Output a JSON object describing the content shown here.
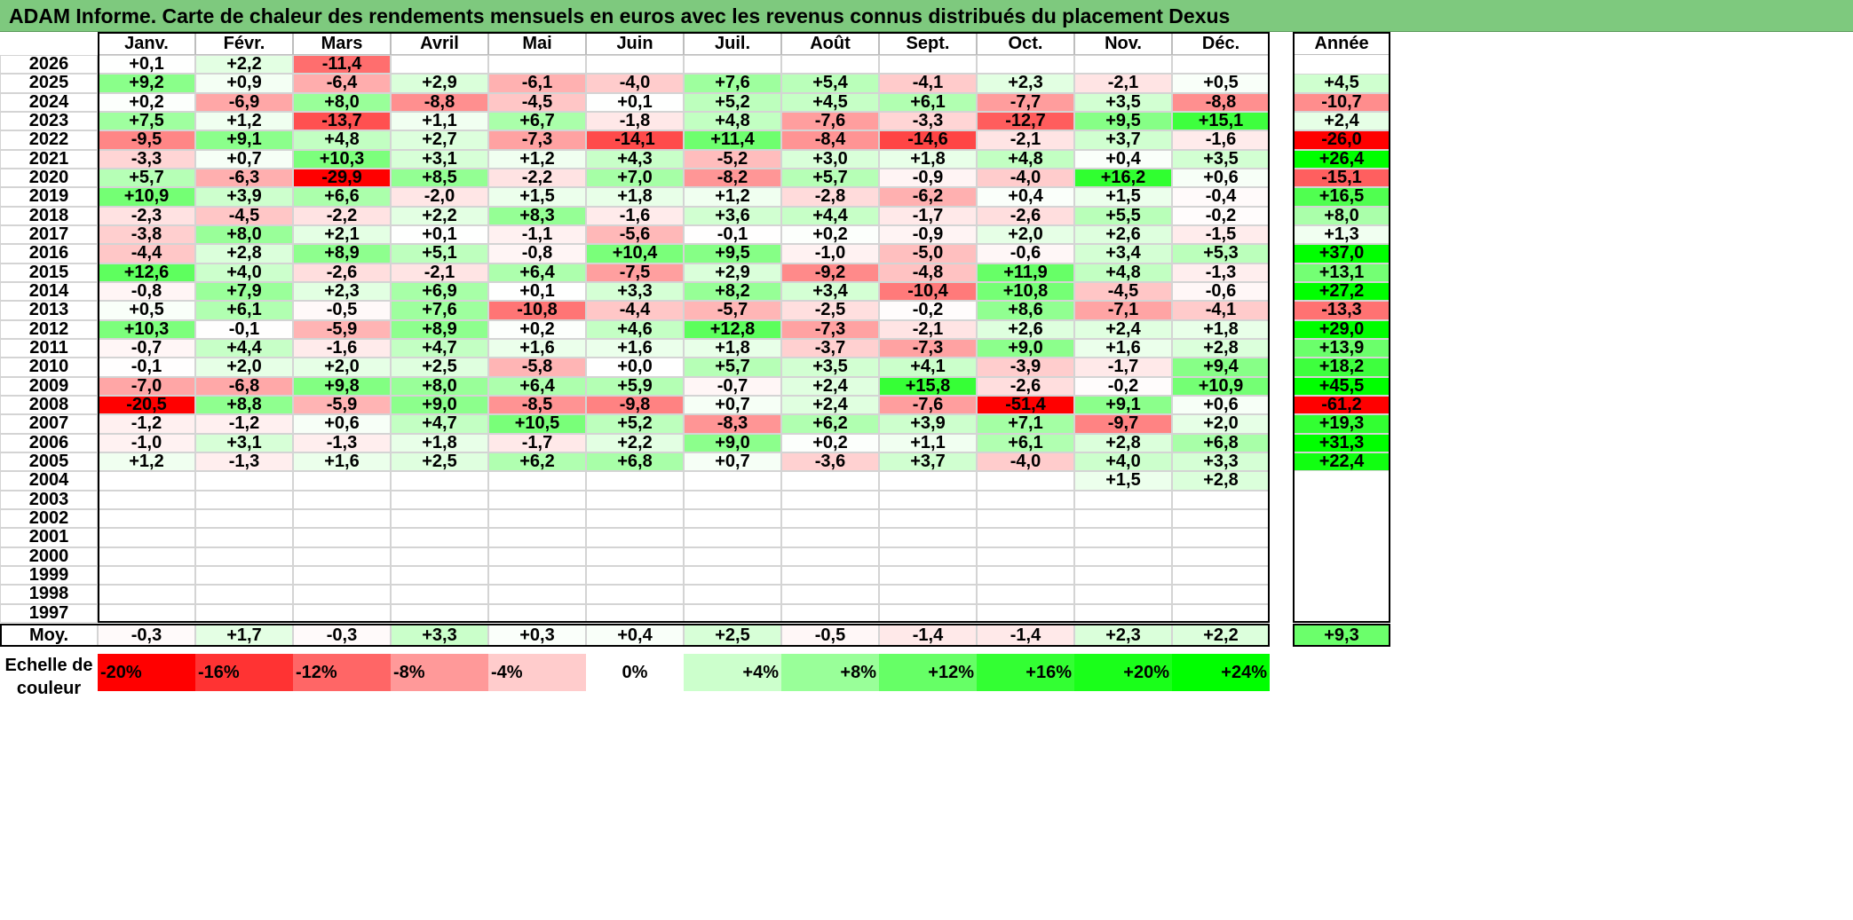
{
  "title": "ADAM Informe. Carte de chaleur des rendements mensuels en euros avec les revenus connus distribués du placement Dexus",
  "chart_data": {
    "type": "heatmap",
    "title": "ADAM Informe. Carte de chaleur des rendements mensuels en euros avec les revenus connus distribués du placement Dexus",
    "columns": [
      "Janv.",
      "Févr.",
      "Mars",
      "Avril",
      "Mai",
      "Juin",
      "Juil.",
      "Août",
      "Sept.",
      "Oct.",
      "Nov.",
      "Déc."
    ],
    "year_column_label": "Année",
    "rows": [
      {
        "year": "2026",
        "values": [
          "+0,1",
          "+2,2",
          "-11,4",
          null,
          null,
          null,
          null,
          null,
          null,
          null,
          null,
          null
        ],
        "annual": null
      },
      {
        "year": "2025",
        "values": [
          "+9,2",
          "+0,9",
          "-6,4",
          "+2,9",
          "-6,1",
          "-4,0",
          "+7,6",
          "+5,4",
          "-4,1",
          "+2,3",
          "-2,1",
          "+0,5"
        ],
        "annual": "+4,5"
      },
      {
        "year": "2024",
        "values": [
          "+0,2",
          "-6,9",
          "+8,0",
          "-8,8",
          "-4,5",
          "+0,1",
          "+5,2",
          "+4,5",
          "+6,1",
          "-7,7",
          "+3,5",
          "-8,8"
        ],
        "annual": "-10,7"
      },
      {
        "year": "2023",
        "values": [
          "+7,5",
          "+1,2",
          "-13,7",
          "+1,1",
          "+6,7",
          "-1,8",
          "+4,8",
          "-7,6",
          "-3,3",
          "-12,7",
          "+9,5",
          "+15,1"
        ],
        "annual": "+2,4"
      },
      {
        "year": "2022",
        "values": [
          "-9,5",
          "+9,1",
          "+4,8",
          "+2,7",
          "-7,3",
          "-14,1",
          "+11,4",
          "-8,4",
          "-14,6",
          "-2,1",
          "+3,7",
          "-1,6"
        ],
        "annual": "-26,0"
      },
      {
        "year": "2021",
        "values": [
          "-3,3",
          "+0,7",
          "+10,3",
          "+3,1",
          "+1,2",
          "+4,3",
          "-5,2",
          "+3,0",
          "+1,8",
          "+4,8",
          "+0,4",
          "+3,5"
        ],
        "annual": "+26,4"
      },
      {
        "year": "2020",
        "values": [
          "+5,7",
          "-6,3",
          "-29,9",
          "+8,5",
          "-2,2",
          "+7,0",
          "-8,2",
          "+5,7",
          "-0,9",
          "-4,0",
          "+16,2",
          "+0,6"
        ],
        "annual": "-15,1"
      },
      {
        "year": "2019",
        "values": [
          "+10,9",
          "+3,9",
          "+6,6",
          "-2,0",
          "+1,5",
          "+1,8",
          "+1,2",
          "-2,8",
          "-6,2",
          "+0,4",
          "+1,5",
          "-0,4"
        ],
        "annual": "+16,5"
      },
      {
        "year": "2018",
        "values": [
          "-2,3",
          "-4,5",
          "-2,2",
          "+2,2",
          "+8,3",
          "-1,6",
          "+3,6",
          "+4,4",
          "-1,7",
          "-2,6",
          "+5,5",
          "-0,2"
        ],
        "annual": "+8,0"
      },
      {
        "year": "2017",
        "values": [
          "-3,8",
          "+8,0",
          "+2,1",
          "+0,1",
          "-1,1",
          "-5,6",
          "-0,1",
          "+0,2",
          "-0,9",
          "+2,0",
          "+2,6",
          "-1,5"
        ],
        "annual": "+1,3"
      },
      {
        "year": "2016",
        "values": [
          "-4,4",
          "+2,8",
          "+8,9",
          "+5,1",
          "-0,8",
          "+10,4",
          "+9,5",
          "-1,0",
          "-5,0",
          "-0,6",
          "+3,4",
          "+5,3"
        ],
        "annual": "+37,0"
      },
      {
        "year": "2015",
        "values": [
          "+12,6",
          "+4,0",
          "-2,6",
          "-2,1",
          "+6,4",
          "-7,5",
          "+2,9",
          "-9,2",
          "-4,8",
          "+11,9",
          "+4,8",
          "-1,3"
        ],
        "annual": "+13,1"
      },
      {
        "year": "2014",
        "values": [
          "-0,8",
          "+7,9",
          "+2,3",
          "+6,9",
          "+0,1",
          "+3,3",
          "+8,2",
          "+3,4",
          "-10,4",
          "+10,8",
          "-4,5",
          "-0,6"
        ],
        "annual": "+27,2"
      },
      {
        "year": "2013",
        "values": [
          "+0,5",
          "+6,1",
          "-0,5",
          "+7,6",
          "-10,8",
          "-4,4",
          "-5,7",
          "-2,5",
          "-0,2",
          "+8,6",
          "-7,1",
          "-4,1"
        ],
        "annual": "-13,3"
      },
      {
        "year": "2012",
        "values": [
          "+10,3",
          "-0,1",
          "-5,9",
          "+8,9",
          "+0,2",
          "+4,6",
          "+12,8",
          "-7,3",
          "-2,1",
          "+2,6",
          "+2,4",
          "+1,8"
        ],
        "annual": "+29,0"
      },
      {
        "year": "2011",
        "values": [
          "-0,7",
          "+4,4",
          "-1,6",
          "+4,7",
          "+1,6",
          "+1,6",
          "+1,8",
          "-3,7",
          "-7,3",
          "+9,0",
          "+1,6",
          "+2,8"
        ],
        "annual": "+13,9"
      },
      {
        "year": "2010",
        "values": [
          "-0,1",
          "+2,0",
          "+2,0",
          "+2,5",
          "-5,8",
          "+0,0",
          "+5,7",
          "+3,5",
          "+4,1",
          "-3,9",
          "-1,7",
          "+9,4"
        ],
        "annual": "+18,2"
      },
      {
        "year": "2009",
        "values": [
          "-7,0",
          "-6,8",
          "+9,8",
          "+8,0",
          "+6,4",
          "+5,9",
          "-0,7",
          "+2,4",
          "+15,8",
          "-2,6",
          "-0,2",
          "+10,9"
        ],
        "annual": "+45,5"
      },
      {
        "year": "2008",
        "values": [
          "-20,5",
          "+8,8",
          "-5,9",
          "+9,0",
          "-8,5",
          "-9,8",
          "+0,7",
          "+2,4",
          "-7,6",
          "-51,4",
          "+9,1",
          "+0,6"
        ],
        "annual": "-61,2"
      },
      {
        "year": "2007",
        "values": [
          "-1,2",
          "-1,2",
          "+0,6",
          "+4,7",
          "+10,5",
          "+5,2",
          "-8,3",
          "+6,2",
          "+3,9",
          "+7,1",
          "-9,7",
          "+2,0"
        ],
        "annual": "+19,3"
      },
      {
        "year": "2006",
        "values": [
          "-1,0",
          "+3,1",
          "-1,3",
          "+1,8",
          "-1,7",
          "+2,2",
          "+9,0",
          "+0,2",
          "+1,1",
          "+6,1",
          "+2,8",
          "+6,8"
        ],
        "annual": "+31,3"
      },
      {
        "year": "2005",
        "values": [
          "+1,2",
          "-1,3",
          "+1,6",
          "+2,5",
          "+6,2",
          "+6,8",
          "+0,7",
          "-3,6",
          "+3,7",
          "-4,0",
          "+4,0",
          "+3,3"
        ],
        "annual": "+22,4"
      },
      {
        "year": "2004",
        "values": [
          null,
          null,
          null,
          null,
          null,
          null,
          null,
          null,
          null,
          null,
          "+1,5",
          "+2,8"
        ],
        "annual": null
      },
      {
        "year": "2003",
        "values": [
          null,
          null,
          null,
          null,
          null,
          null,
          null,
          null,
          null,
          null,
          null,
          null
        ],
        "annual": null
      },
      {
        "year": "2002",
        "values": [
          null,
          null,
          null,
          null,
          null,
          null,
          null,
          null,
          null,
          null,
          null,
          null
        ],
        "annual": null
      },
      {
        "year": "2001",
        "values": [
          null,
          null,
          null,
          null,
          null,
          null,
          null,
          null,
          null,
          null,
          null,
          null
        ],
        "annual": null
      },
      {
        "year": "2000",
        "values": [
          null,
          null,
          null,
          null,
          null,
          null,
          null,
          null,
          null,
          null,
          null,
          null
        ],
        "annual": null
      },
      {
        "year": "1999",
        "values": [
          null,
          null,
          null,
          null,
          null,
          null,
          null,
          null,
          null,
          null,
          null,
          null
        ],
        "annual": null
      },
      {
        "year": "1998",
        "values": [
          null,
          null,
          null,
          null,
          null,
          null,
          null,
          null,
          null,
          null,
          null,
          null
        ],
        "annual": null
      },
      {
        "year": "1997",
        "values": [
          null,
          null,
          null,
          null,
          null,
          null,
          null,
          null,
          null,
          null,
          null,
          null
        ],
        "annual": null
      }
    ],
    "average": {
      "label": "Moy.",
      "values": [
        "-0,3",
        "+1,7",
        "-0,3",
        "+3,3",
        "+0,3",
        "+0,4",
        "+2,5",
        "-0,5",
        "-1,4",
        "-1,4",
        "+2,3",
        "+2,2"
      ],
      "annual": "+9,3"
    },
    "color_scale": {
      "label_line1": "Echelle de",
      "label_line2": "couleur",
      "stops": [
        {
          "label": "-20%",
          "color": "#ff0000"
        },
        {
          "label": "-16%",
          "color": "#ff3333"
        },
        {
          "label": "-12%",
          "color": "#ff6666"
        },
        {
          "label": "-8%",
          "color": "#ff9999"
        },
        {
          "label": "-4%",
          "color": "#ffcccc"
        },
        {
          "label": "0%",
          "color": "#ffffff"
        },
        {
          "label": "+4%",
          "color": "#ccffcc"
        },
        {
          "label": "+8%",
          "color": "#99ff99"
        },
        {
          "label": "+12%",
          "color": "#66ff66"
        },
        {
          "label": "+16%",
          "color": "#33ff33"
        },
        {
          "label": "+20%",
          "color": "#1aff1a"
        },
        {
          "label": "+24%",
          "color": "#00ff00"
        }
      ]
    }
  },
  "colors": {
    "title_bar": "#7ec97e",
    "negative_max": "#ff0000",
    "positive_max": "#00ff00",
    "neutral": "#ffffff"
  }
}
